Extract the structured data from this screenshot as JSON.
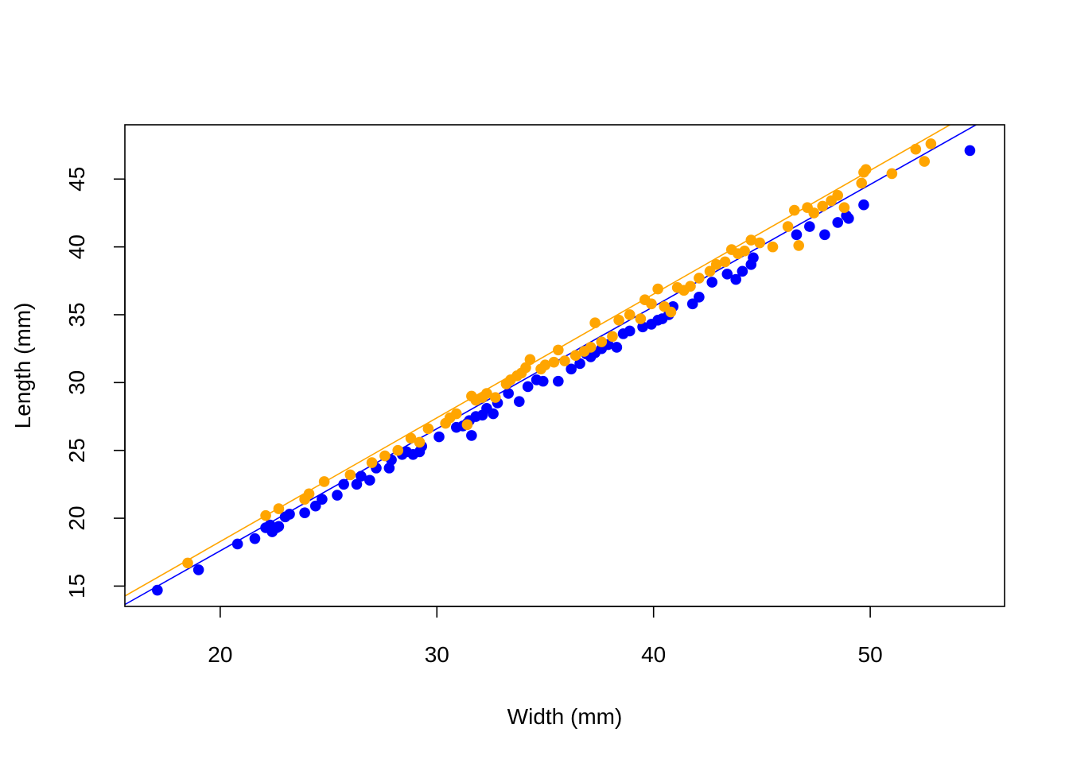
{
  "chart_data": {
    "type": "scatter",
    "xlabel": "Width (mm)",
    "ylabel": "Length (mm)",
    "xlim": [
      15.6,
      56.2
    ],
    "ylim": [
      13.5,
      49.0
    ],
    "xticks": [
      20,
      30,
      40,
      50
    ],
    "yticks": [
      15,
      20,
      25,
      30,
      35,
      40,
      45
    ],
    "grid": false,
    "legend": "none",
    "series": [
      {
        "color": "#0000ff",
        "fit": {
          "slope": 0.9,
          "intercept": -0.4
        },
        "points": [
          [
            17.1,
            14.7
          ],
          [
            19.0,
            16.2
          ],
          [
            20.8,
            18.1
          ],
          [
            21.6,
            18.5
          ],
          [
            22.1,
            19.3
          ],
          [
            22.3,
            19.5
          ],
          [
            22.4,
            19.0
          ],
          [
            22.6,
            19.3
          ],
          [
            22.7,
            19.4
          ],
          [
            23.0,
            20.1
          ],
          [
            23.2,
            20.3
          ],
          [
            23.9,
            20.4
          ],
          [
            24.4,
            20.9
          ],
          [
            24.7,
            21.4
          ],
          [
            25.4,
            21.7
          ],
          [
            25.7,
            22.5
          ],
          [
            26.3,
            22.5
          ],
          [
            26.5,
            23.1
          ],
          [
            26.9,
            22.8
          ],
          [
            27.2,
            23.7
          ],
          [
            27.8,
            23.7
          ],
          [
            27.9,
            24.3
          ],
          [
            28.4,
            24.7
          ],
          [
            28.6,
            24.9
          ],
          [
            28.9,
            24.7
          ],
          [
            29.2,
            24.9
          ],
          [
            29.3,
            25.3
          ],
          [
            30.1,
            26.0
          ],
          [
            30.9,
            26.7
          ],
          [
            31.2,
            26.8
          ],
          [
            31.4,
            27.0
          ],
          [
            31.5,
            27.2
          ],
          [
            31.6,
            26.1
          ],
          [
            31.8,
            27.5
          ],
          [
            32.1,
            27.6
          ],
          [
            32.3,
            28.1
          ],
          [
            32.6,
            27.7
          ],
          [
            32.8,
            28.5
          ],
          [
            33.3,
            29.2
          ],
          [
            33.8,
            28.6
          ],
          [
            34.2,
            29.7
          ],
          [
            34.6,
            30.2
          ],
          [
            34.9,
            30.1
          ],
          [
            35.6,
            30.1
          ],
          [
            36.2,
            31.0
          ],
          [
            36.6,
            31.4
          ],
          [
            36.9,
            32.1
          ],
          [
            37.1,
            31.9
          ],
          [
            37.3,
            32.2
          ],
          [
            37.6,
            32.5
          ],
          [
            37.9,
            32.8
          ],
          [
            38.3,
            32.6
          ],
          [
            38.6,
            33.6
          ],
          [
            38.9,
            33.8
          ],
          [
            39.5,
            34.1
          ],
          [
            39.9,
            34.3
          ],
          [
            40.2,
            34.6
          ],
          [
            40.4,
            34.7
          ],
          [
            40.7,
            35.0
          ],
          [
            40.9,
            35.6
          ],
          [
            41.8,
            35.8
          ],
          [
            42.1,
            36.3
          ],
          [
            42.7,
            37.4
          ],
          [
            43.4,
            38.0
          ],
          [
            43.8,
            37.6
          ],
          [
            44.1,
            38.2
          ],
          [
            44.5,
            38.7
          ],
          [
            44.6,
            39.2
          ],
          [
            46.6,
            40.9
          ],
          [
            47.2,
            41.5
          ],
          [
            47.9,
            40.9
          ],
          [
            48.5,
            41.8
          ],
          [
            48.9,
            42.3
          ],
          [
            49.0,
            42.1
          ],
          [
            49.7,
            43.1
          ],
          [
            54.6,
            47.1
          ]
        ]
      },
      {
        "color": "#ffa500",
        "fit": {
          "slope": 0.912,
          "intercept": 0.04
        },
        "points": [
          [
            18.5,
            16.7
          ],
          [
            22.1,
            20.2
          ],
          [
            22.7,
            20.7
          ],
          [
            23.9,
            21.4
          ],
          [
            24.1,
            21.8
          ],
          [
            24.8,
            22.7
          ],
          [
            26.0,
            23.2
          ],
          [
            27.0,
            24.1
          ],
          [
            27.6,
            24.6
          ],
          [
            28.2,
            25.0
          ],
          [
            28.8,
            25.9
          ],
          [
            29.2,
            25.6
          ],
          [
            29.6,
            26.6
          ],
          [
            30.4,
            27.0
          ],
          [
            30.6,
            27.4
          ],
          [
            30.9,
            27.7
          ],
          [
            31.4,
            26.9
          ],
          [
            31.6,
            29.0
          ],
          [
            31.8,
            28.7
          ],
          [
            32.1,
            28.9
          ],
          [
            32.3,
            29.2
          ],
          [
            32.7,
            28.9
          ],
          [
            33.2,
            29.9
          ],
          [
            33.4,
            30.2
          ],
          [
            33.7,
            30.5
          ],
          [
            33.9,
            30.7
          ],
          [
            34.1,
            31.1
          ],
          [
            34.3,
            31.7
          ],
          [
            34.8,
            31.0
          ],
          [
            35.0,
            31.3
          ],
          [
            35.4,
            31.5
          ],
          [
            35.6,
            32.4
          ],
          [
            35.9,
            31.6
          ],
          [
            36.4,
            32.0
          ],
          [
            36.8,
            32.3
          ],
          [
            37.1,
            32.6
          ],
          [
            37.3,
            34.4
          ],
          [
            37.6,
            33.0
          ],
          [
            38.1,
            33.4
          ],
          [
            38.4,
            34.6
          ],
          [
            38.9,
            35.0
          ],
          [
            39.4,
            34.7
          ],
          [
            39.6,
            36.1
          ],
          [
            39.9,
            35.8
          ],
          [
            40.2,
            36.9
          ],
          [
            40.5,
            35.6
          ],
          [
            40.8,
            35.2
          ],
          [
            41.1,
            37.0
          ],
          [
            41.4,
            36.8
          ],
          [
            41.7,
            37.1
          ],
          [
            42.1,
            37.7
          ],
          [
            42.6,
            38.2
          ],
          [
            42.9,
            38.7
          ],
          [
            43.3,
            38.9
          ],
          [
            43.6,
            39.8
          ],
          [
            43.9,
            39.5
          ],
          [
            44.2,
            39.7
          ],
          [
            44.5,
            40.5
          ],
          [
            44.9,
            40.3
          ],
          [
            45.5,
            40.0
          ],
          [
            46.2,
            41.5
          ],
          [
            46.5,
            42.7
          ],
          [
            46.7,
            40.1
          ],
          [
            47.1,
            42.9
          ],
          [
            47.4,
            42.5
          ],
          [
            47.8,
            43.0
          ],
          [
            48.2,
            43.4
          ],
          [
            48.5,
            43.8
          ],
          [
            48.8,
            42.9
          ],
          [
            49.6,
            44.7
          ],
          [
            49.7,
            45.5
          ],
          [
            49.8,
            45.7
          ],
          [
            51.0,
            45.4
          ],
          [
            52.1,
            47.2
          ],
          [
            52.5,
            46.3
          ],
          [
            52.8,
            47.6
          ]
        ]
      }
    ]
  }
}
